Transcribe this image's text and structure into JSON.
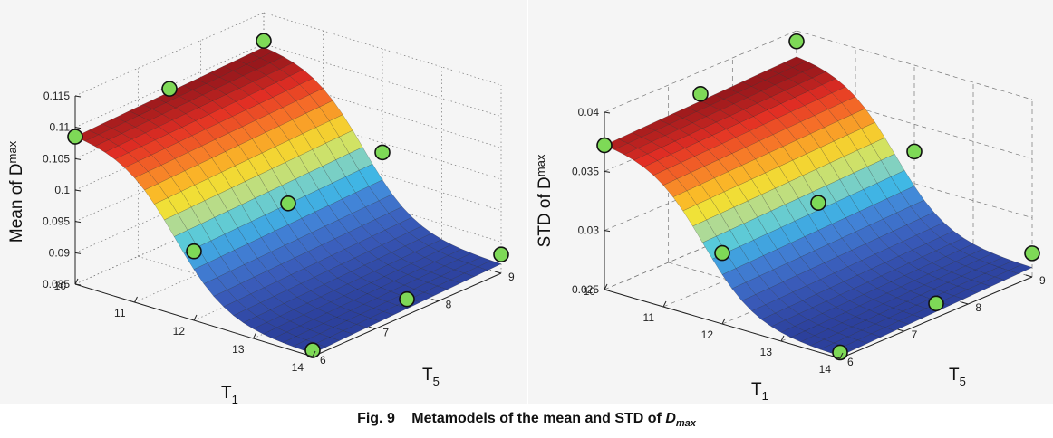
{
  "caption": {
    "number": "Fig. 9",
    "text": "Metamodels of the mean and STD of",
    "var": "D",
    "var_sub": "max"
  },
  "chart_data": [
    {
      "type": "surface",
      "title": "",
      "zlabel": "Mean of D",
      "zlabel_sub": "max",
      "xlabel": "T",
      "xlabel_sub": "1",
      "ylabel": "T",
      "ylabel_sub": "5",
      "xlim": [
        10,
        14
      ],
      "ylim": [
        6,
        9
      ],
      "zlim": [
        0.085,
        0.115
      ],
      "xticks": [
        "10",
        "11",
        "12",
        "13",
        "14"
      ],
      "yticks": [
        "6",
        "7",
        "8",
        "9"
      ],
      "zticks": [
        "0.085",
        "0.09",
        "0.095",
        "0.1",
        "0.105",
        "0.11",
        "0.115"
      ],
      "grid": "dotted",
      "colormap": "jet",
      "surface": {
        "z_at_T1_min": 0.109,
        "z_at_T1_max": 0.086,
        "t5_effect": 0.0005
      },
      "sample_points": [
        {
          "T1": 10,
          "T5": 6,
          "z": 0.1085
        },
        {
          "T1": 10,
          "T5": 7.5,
          "z": 0.1095
        },
        {
          "T1": 10,
          "T5": 9,
          "z": 0.1105
        },
        {
          "T1": 12,
          "T5": 6,
          "z": 0.096
        },
        {
          "T1": 12,
          "T5": 7.5,
          "z": 0.097
        },
        {
          "T1": 12,
          "T5": 9,
          "z": 0.0985
        },
        {
          "T1": 14,
          "T5": 6,
          "z": 0.086
        },
        {
          "T1": 14,
          "T5": 7.5,
          "z": 0.0875
        },
        {
          "T1": 14,
          "T5": 9,
          "z": 0.088
        }
      ],
      "marker_color": "#7ed957"
    },
    {
      "type": "surface",
      "title": "",
      "zlabel": "STD of D",
      "zlabel_sub": "max",
      "xlabel": "T",
      "xlabel_sub": "1",
      "ylabel": "T",
      "ylabel_sub": "5",
      "xlim": [
        10,
        14
      ],
      "ylim": [
        6,
        9
      ],
      "zlim": [
        0.025,
        0.04
      ],
      "xticks": [
        "10",
        "11",
        "12",
        "13",
        "14"
      ],
      "yticks": [
        "6",
        "7",
        "8",
        "9"
      ],
      "zticks": [
        "0.025",
        "0.03",
        "0.035",
        "0.04"
      ],
      "grid": "dashed",
      "colormap": "jet",
      "surface": {
        "z_at_T1_min": 0.0375,
        "z_at_T1_max": 0.0255,
        "t5_effect": 0.0003
      },
      "sample_points": [
        {
          "T1": 10,
          "T5": 6,
          "z": 0.0372
        },
        {
          "T1": 10,
          "T5": 7.5,
          "z": 0.0381
        },
        {
          "T1": 10,
          "T5": 9,
          "z": 0.0391
        },
        {
          "T1": 12,
          "T5": 6,
          "z": 0.031
        },
        {
          "T1": 12,
          "T5": 7.5,
          "z": 0.0318
        },
        {
          "T1": 12,
          "T5": 9,
          "z": 0.0327
        },
        {
          "T1": 14,
          "T5": 6,
          "z": 0.0255
        },
        {
          "T1": 14,
          "T5": 7.5,
          "z": 0.0262
        },
        {
          "T1": 14,
          "T5": 9,
          "z": 0.027
        }
      ],
      "marker_color": "#7ed957"
    }
  ]
}
